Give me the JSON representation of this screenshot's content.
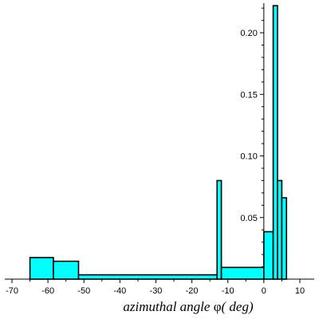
{
  "chart_data": {
    "type": "bar",
    "histogram": true,
    "bar_color": "#00ffff",
    "edge_color": "#000000",
    "bins": [
      {
        "x0": -65,
        "x1": -58.5,
        "value": 0.0175
      },
      {
        "x0": -58.5,
        "x1": -51.5,
        "value": 0.0145
      },
      {
        "x0": -51.5,
        "x1": -13,
        "value": 0.0035
      },
      {
        "x0": -13,
        "x1": -11.8,
        "value": 0.08
      },
      {
        "x0": -11.8,
        "x1": 0,
        "value": 0.0095
      },
      {
        "x0": 0,
        "x1": 2.6,
        "value": 0.0385
      },
      {
        "x0": 2.6,
        "x1": 3.8,
        "value": 0.222
      },
      {
        "x0": 3.8,
        "x1": 5,
        "value": 0.08
      },
      {
        "x0": 5,
        "x1": 6.3,
        "value": 0.066
      }
    ],
    "xlim": [
      -72,
      14
    ],
    "ylim": [
      0,
      0.224
    ],
    "x_ticks": [
      -70,
      -60,
      -50,
      -40,
      -30,
      -20,
      -10,
      0,
      10
    ],
    "y_ticks": [
      0.05,
      0.1,
      0.15,
      0.2
    ],
    "x_tick_labels": [
      "-70",
      "-60",
      "-50",
      "-40",
      "-30",
      "-20",
      "-10",
      "0",
      "10"
    ],
    "y_tick_labels": [
      "0.05",
      "0.10",
      "0.15",
      "0.20"
    ],
    "xlabel_text": "azimuthal angle ",
    "xlabel_symbol": "φ",
    "xlabel_unit": "( deg)",
    "ylabel": "",
    "grid": false,
    "legend": "none",
    "y_axis_at": 0
  }
}
